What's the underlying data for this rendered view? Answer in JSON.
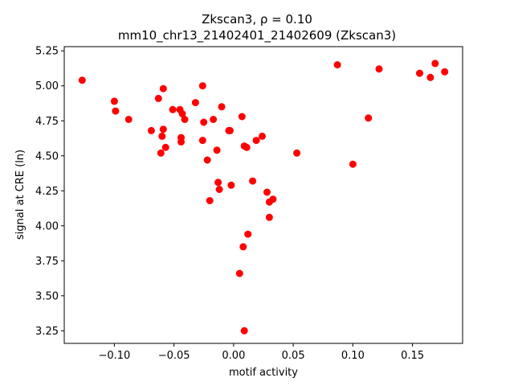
{
  "chart_data": {
    "type": "scatter",
    "title_line1": "Zkscan3, ρ = 0.10",
    "title_line2": "mm10_chr13_21402401_21402609 (Zkscan3)",
    "xlabel": "motif activity",
    "ylabel": "signal at CRE (ln)",
    "xlim": [
      -0.142,
      0.192
    ],
    "ylim": [
      3.16,
      5.28
    ],
    "x_ticks": [
      -0.1,
      -0.05,
      0.0,
      0.05,
      0.1,
      0.15
    ],
    "x_tick_labels": [
      "−0.10",
      "−0.05",
      "0.00",
      "0.05",
      "0.10",
      "0.15"
    ],
    "y_ticks": [
      3.25,
      3.5,
      3.75,
      4.0,
      4.25,
      4.5,
      4.75,
      5.0,
      5.25
    ],
    "y_tick_labels": [
      "3.25",
      "3.50",
      "3.75",
      "4.00",
      "4.25",
      "4.50",
      "4.75",
      "5.00",
      "5.25"
    ],
    "marker_color": "#ff0000",
    "grid": false,
    "legend": "none",
    "points": [
      {
        "x": -0.127,
        "y": 5.04
      },
      {
        "x": -0.1,
        "y": 4.89
      },
      {
        "x": -0.099,
        "y": 4.82
      },
      {
        "x": -0.088,
        "y": 4.76
      },
      {
        "x": -0.069,
        "y": 4.68
      },
      {
        "x": -0.063,
        "y": 4.91
      },
      {
        "x": -0.059,
        "y": 4.98
      },
      {
        "x": -0.06,
        "y": 4.64
      },
      {
        "x": -0.059,
        "y": 4.69
      },
      {
        "x": -0.057,
        "y": 4.56
      },
      {
        "x": -0.061,
        "y": 4.52
      },
      {
        "x": -0.051,
        "y": 4.83
      },
      {
        "x": -0.045,
        "y": 4.83
      },
      {
        "x": -0.043,
        "y": 4.8
      },
      {
        "x": -0.041,
        "y": 4.76
      },
      {
        "x": -0.044,
        "y": 4.63
      },
      {
        "x": -0.044,
        "y": 4.6
      },
      {
        "x": -0.032,
        "y": 4.88
      },
      {
        "x": -0.026,
        "y": 5.0
      },
      {
        "x": -0.025,
        "y": 4.74
      },
      {
        "x": -0.026,
        "y": 4.61
      },
      {
        "x": -0.022,
        "y": 4.47
      },
      {
        "x": -0.017,
        "y": 4.76
      },
      {
        "x": -0.014,
        "y": 4.54
      },
      {
        "x": -0.01,
        "y": 4.85
      },
      {
        "x": -0.013,
        "y": 4.31
      },
      {
        "x": -0.012,
        "y": 4.26
      },
      {
        "x": -0.02,
        "y": 4.18
      },
      {
        "x": -0.004,
        "y": 4.68
      },
      {
        "x": -0.003,
        "y": 4.68
      },
      {
        "x": -0.002,
        "y": 4.29
      },
      {
        "x": 0.007,
        "y": 4.78
      },
      {
        "x": 0.009,
        "y": 4.57
      },
      {
        "x": 0.011,
        "y": 4.56
      },
      {
        "x": 0.019,
        "y": 4.61
      },
      {
        "x": 0.024,
        "y": 4.64
      },
      {
        "x": 0.016,
        "y": 4.32
      },
      {
        "x": 0.028,
        "y": 4.24
      },
      {
        "x": 0.033,
        "y": 4.19
      },
      {
        "x": 0.03,
        "y": 4.17
      },
      {
        "x": 0.03,
        "y": 4.06
      },
      {
        "x": 0.012,
        "y": 3.94
      },
      {
        "x": 0.008,
        "y": 3.85
      },
      {
        "x": 0.005,
        "y": 3.66
      },
      {
        "x": 0.009,
        "y": 3.25
      },
      {
        "x": 0.053,
        "y": 4.52
      },
      {
        "x": 0.087,
        "y": 5.15
      },
      {
        "x": 0.1,
        "y": 4.44
      },
      {
        "x": 0.113,
        "y": 4.77
      },
      {
        "x": 0.122,
        "y": 5.12
      },
      {
        "x": 0.156,
        "y": 5.09
      },
      {
        "x": 0.165,
        "y": 5.06
      },
      {
        "x": 0.169,
        "y": 5.16
      },
      {
        "x": 0.177,
        "y": 5.1
      }
    ]
  }
}
